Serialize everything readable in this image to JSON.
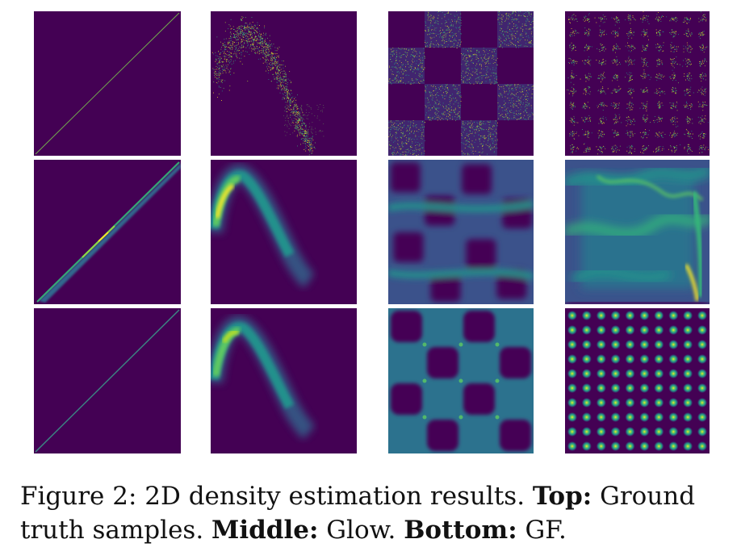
{
  "figure": {
    "rows": [
      "Top",
      "Middle",
      "Bottom"
    ],
    "row_methods": [
      "Ground truth samples",
      "Glow",
      "GF"
    ],
    "datasets": [
      "diagonal-line",
      "sine-curve",
      "checkerboard",
      "grid-of-gaussians"
    ],
    "colormap": "viridis",
    "colors": {
      "background": "#440154",
      "low": "#3b528b",
      "mid": "#21918c",
      "high": "#5ec962",
      "peak": "#fde725"
    }
  },
  "caption": {
    "label": "Figure 2:",
    "text_1": "2D density estimation results.",
    "top_label": "Top:",
    "top_text": "Ground truth samples.",
    "middle_label": "Middle:",
    "middle_text": "Glow.",
    "bottom_label": "Bottom:",
    "bottom_text": "GF."
  }
}
